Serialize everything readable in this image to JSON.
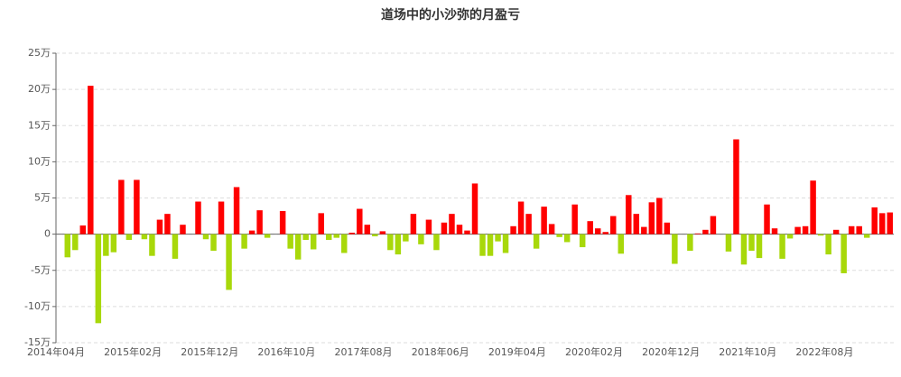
{
  "chart_data": {
    "type": "bar",
    "title": "道场中的小沙弥的月盈亏",
    "categories": [
      "2014年04月",
      null,
      null,
      null,
      null,
      null,
      null,
      null,
      null,
      null,
      "2015年02月",
      null,
      null,
      null,
      null,
      null,
      null,
      null,
      null,
      null,
      "2015年12月",
      null,
      null,
      null,
      null,
      null,
      null,
      null,
      null,
      null,
      "2016年10月",
      null,
      null,
      null,
      null,
      null,
      null,
      null,
      null,
      null,
      "2017年08月",
      null,
      null,
      null,
      null,
      null,
      null,
      null,
      null,
      null,
      "2018年06月",
      null,
      null,
      null,
      null,
      null,
      null,
      null,
      null,
      null,
      "2019年04月",
      null,
      null,
      null,
      null,
      null,
      null,
      null,
      null,
      null,
      "2020年02月",
      null,
      null,
      null,
      null,
      null,
      null,
      null,
      null,
      null,
      "2020年12月",
      null,
      null,
      null,
      null,
      null,
      null,
      null,
      null,
      null,
      "2021年10月",
      null,
      null,
      null,
      null,
      null,
      null,
      null,
      null,
      null,
      "2022年08月",
      null,
      null,
      null,
      null,
      null,
      null,
      null,
      null
    ],
    "values": [
      0,
      -3.2,
      -2.2,
      1.2,
      20.5,
      -12.3,
      -3,
      -2.5,
      7.5,
      -0.8,
      7.5,
      -0.7,
      -3,
      2,
      2.8,
      -3.4,
      1.3,
      0,
      4.5,
      -0.7,
      -2.3,
      4.5,
      -7.7,
      6.5,
      -2,
      0.5,
      3.3,
      -0.5,
      0,
      3.2,
      -2,
      -3.5,
      -0.8,
      -2.1,
      2.9,
      -0.8,
      -0.5,
      -2.6,
      0.2,
      3.5,
      1.3,
      -0.3,
      0.4,
      -2.2,
      -2.8,
      -1,
      2.8,
      -1.4,
      2,
      -2.2,
      1.6,
      2.8,
      1.3,
      0.5,
      7,
      -3,
      -3,
      -1,
      -2.6,
      1.1,
      4.5,
      2.8,
      -2,
      3.8,
      1.4,
      -0.4,
      -1.1,
      4.1,
      -1.8,
      1.8,
      0.8,
      0.3,
      2.5,
      -2.7,
      5.4,
      2.8,
      1,
      4.4,
      5,
      1.6,
      -4.1,
      0,
      -2.3,
      0.1,
      0.6,
      2.5,
      0,
      -2.4,
      13.1,
      -4.2,
      -2.3,
      -3.3,
      4.1,
      0.8,
      -3.4,
      -0.6,
      1,
      1.1,
      7.4,
      -0.2,
      -2.8,
      0.6,
      -5.4,
      1.1,
      1.1,
      -0.5,
      3.7,
      2.9,
      3
    ],
    "positive_color": "#ff0000",
    "negative_color": "#a8d80a",
    "ylim": [
      -15,
      25
    ],
    "yticks": [
      {
        "value": -15,
        "label": "-15万"
      },
      {
        "value": -10,
        "label": "-10万"
      },
      {
        "value": -5,
        "label": "-5万"
      },
      0,
      {
        "value": 5,
        "label": "5万"
      },
      {
        "value": 10,
        "label": "10万"
      },
      {
        "value": 15,
        "label": "15万"
      },
      {
        "value": 20,
        "label": "20万"
      },
      {
        "value": 25,
        "label": "25万"
      }
    ],
    "grid": true
  }
}
